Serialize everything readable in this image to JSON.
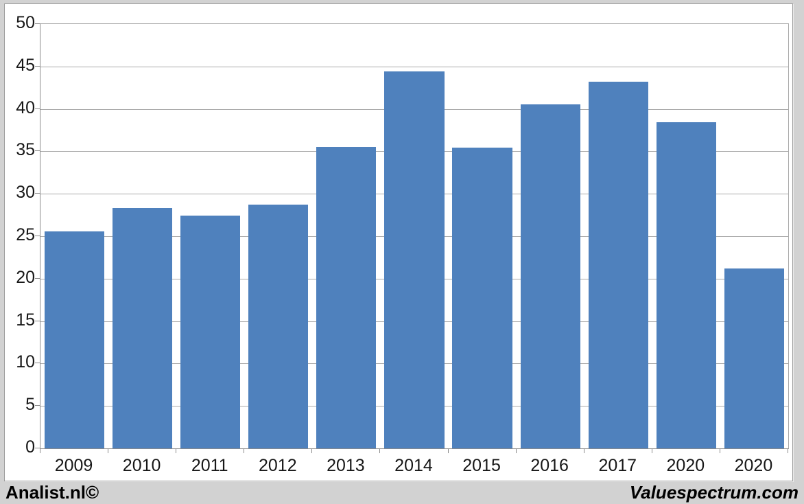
{
  "page": {
    "background_color": "#d2d2d2",
    "frame_background": "#ffffff"
  },
  "chart_data": {
    "type": "bar",
    "title": "",
    "categories": [
      "2009",
      "2010",
      "2011",
      "2012",
      "2013",
      "2014",
      "2015",
      "2016",
      "2017",
      "2020",
      "2020"
    ],
    "values": [
      25.6,
      28.3,
      27.4,
      28.7,
      35.5,
      44.4,
      35.4,
      40.5,
      43.2,
      38.4,
      21.2
    ],
    "xlabel": "",
    "ylabel": "",
    "ylim": [
      0,
      50
    ],
    "yticks": [
      0,
      5,
      10,
      15,
      20,
      25,
      30,
      35,
      40,
      45,
      50
    ],
    "grid": true,
    "legend_position": "none",
    "bar_color": "#4f81bd",
    "gridline_color": "#a9a9a9",
    "axis_color": "#8a8a8a",
    "bar_width_fraction": 0.88
  },
  "footer": {
    "left_brand": "Analist.nl©",
    "right_brand": "Valuespectrum.com"
  }
}
